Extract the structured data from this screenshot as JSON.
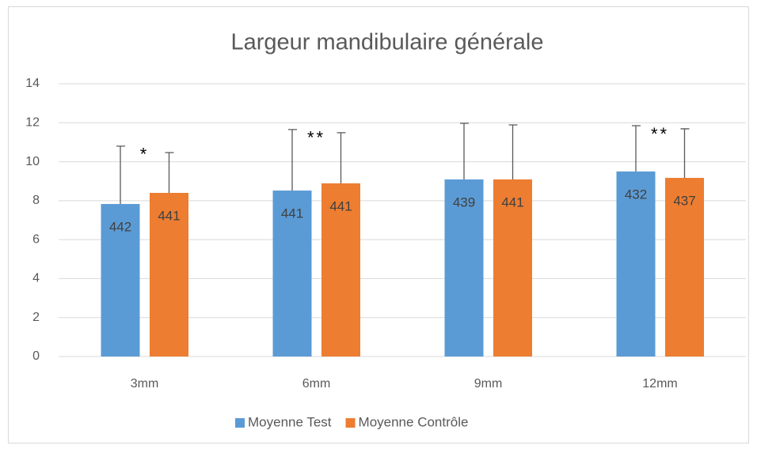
{
  "chart_data": {
    "type": "bar",
    "title": "Largeur mandibulaire générale",
    "categories": [
      "3mm",
      "6mm",
      "9mm",
      "12mm"
    ],
    "series": [
      {
        "name": "Moyenne Test",
        "color": "#5b9bd5",
        "values": [
          7.83,
          8.52,
          9.09,
          9.5
        ],
        "errors": [
          2.97,
          3.13,
          2.88,
          2.35
        ],
        "counts": [
          442,
          441,
          439,
          432
        ]
      },
      {
        "name": "Moyenne Contrôle",
        "color": "#ed7d31",
        "values": [
          8.4,
          8.89,
          9.09,
          9.17
        ],
        "errors": [
          2.07,
          2.6,
          2.8,
          2.52
        ],
        "counts": [
          441,
          441,
          441,
          437
        ]
      }
    ],
    "annotations": [
      "*",
      "**",
      null,
      "**"
    ],
    "ylim": [
      0,
      14
    ],
    "yticks": [
      0,
      2,
      4,
      6,
      8,
      10,
      12,
      14
    ],
    "grid": true,
    "legend": "bottom"
  }
}
